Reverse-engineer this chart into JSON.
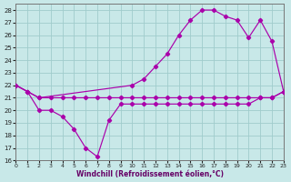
{
  "bg_color": "#c8e8e8",
  "grid_color": "#a0cccc",
  "line_color": "#aa00aa",
  "xlim": [
    0,
    23
  ],
  "ylim": [
    16,
    28.5
  ],
  "xticks": [
    0,
    1,
    2,
    3,
    4,
    5,
    6,
    7,
    8,
    9,
    10,
    11,
    12,
    13,
    14,
    15,
    16,
    17,
    18,
    19,
    20,
    21,
    22,
    23
  ],
  "yticks": [
    16,
    17,
    18,
    19,
    20,
    21,
    22,
    23,
    24,
    25,
    26,
    27,
    28
  ],
  "xlabel": "Windchill (Refroidissement éolien,°C)",
  "line1_x": [
    0,
    1,
    2,
    3,
    4,
    5,
    6,
    7,
    8,
    9,
    10,
    11,
    12,
    13,
    14,
    15,
    16,
    17,
    18,
    19,
    20,
    21,
    22,
    23
  ],
  "line1_y": [
    22,
    21.5,
    21,
    21,
    21,
    21,
    21,
    21,
    21,
    21,
    21,
    21,
    21,
    21,
    21,
    21,
    21,
    21,
    21,
    21,
    21,
    21,
    21,
    21.5
  ],
  "line2_x": [
    0,
    1,
    2,
    3,
    4,
    5,
    6,
    7,
    8,
    9,
    10,
    11,
    12,
    13,
    14,
    15,
    16,
    17,
    18,
    19,
    20,
    21,
    22,
    23
  ],
  "line2_y": [
    22,
    21.5,
    20,
    20,
    19.5,
    18.5,
    17,
    16.3,
    19.2,
    20.5,
    20.5,
    20.5,
    20.5,
    20.5,
    20.5,
    20.5,
    20.5,
    20.5,
    20.5,
    20.5,
    20.5,
    21,
    21,
    21.5
  ],
  "line3_x": [
    0,
    1,
    2,
    10,
    11,
    12,
    13,
    14,
    15,
    16,
    17,
    18,
    19,
    20,
    21,
    22,
    23
  ],
  "line3_y": [
    22,
    21.5,
    21,
    22,
    22.5,
    23.5,
    24.5,
    26.0,
    27.2,
    28.0,
    28.0,
    27.5,
    27.2,
    25.8,
    27.2,
    25.5,
    21.5
  ]
}
